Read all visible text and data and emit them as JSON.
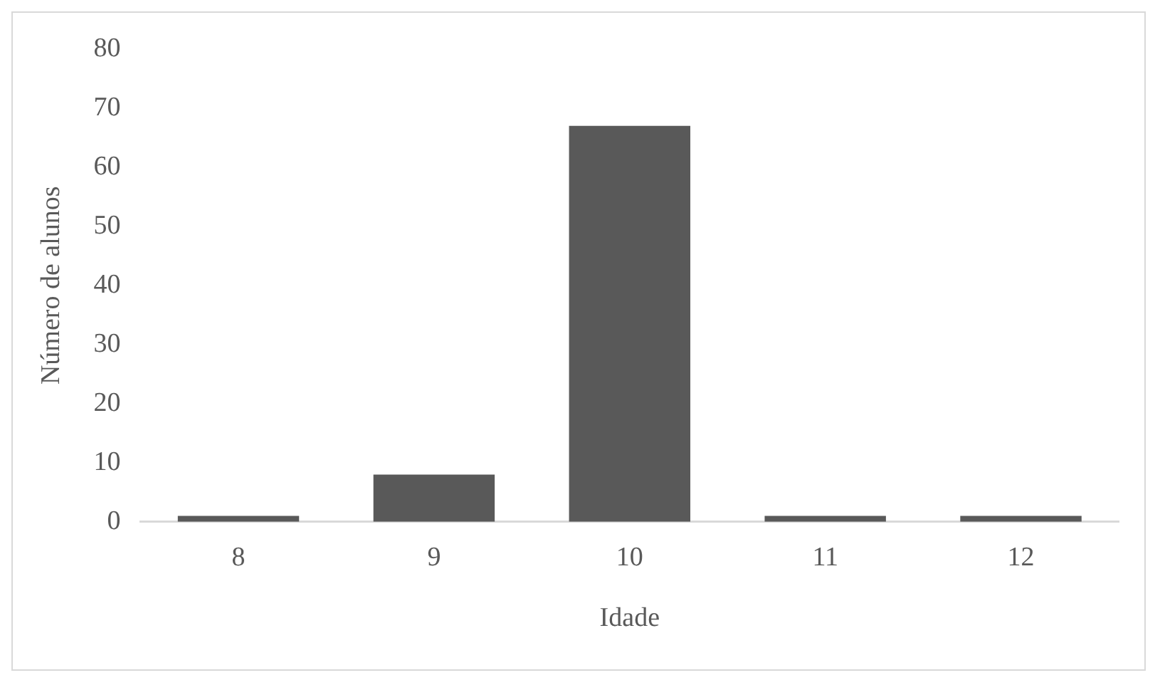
{
  "chart_data": {
    "type": "bar",
    "xlabel": "Idade",
    "ylabel": "Número de alunos",
    "categories": [
      "8",
      "9",
      "10",
      "11",
      "12"
    ],
    "values": [
      1,
      8,
      67,
      1,
      1
    ],
    "color": "#595959",
    "ylim": [
      0,
      80
    ],
    "yticks": [
      0,
      10,
      20,
      30,
      40,
      50,
      60,
      70,
      80
    ],
    "grid": false,
    "legend": false
  }
}
